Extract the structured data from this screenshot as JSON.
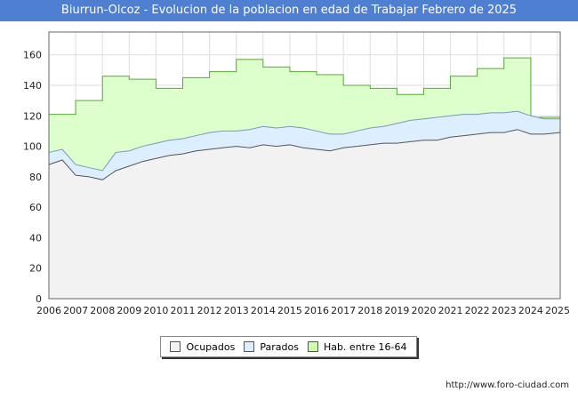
{
  "title": "Biurrun-Olcoz - Evolucion de la poblacion en edad de Trabajar Febrero de 2025",
  "footer": "http://www.foro-ciudad.com",
  "colors": {
    "ocupados_fill": "#f2f2f2",
    "ocupados_line": "#555555",
    "parados_fill": "#ddeeff",
    "parados_line": "#7799bb",
    "hab_fill": "#ddffcc",
    "hab_line": "#55aa33"
  },
  "legend": [
    {
      "label": "Ocupados",
      "color": "#f2f2f2"
    },
    {
      "label": "Parados",
      "color": "#ddeeff"
    },
    {
      "label": "Hab. entre 16-64",
      "color": "#ccffaa"
    }
  ],
  "chart_data": {
    "type": "area",
    "title": "Biurrun-Olcoz - Evolucion de la poblacion en edad de Trabajar Febrero de 2025",
    "xlabel": "",
    "ylabel": "",
    "xlim": [
      2006,
      2025.1
    ],
    "ylim": [
      0,
      175
    ],
    "yticks": [
      0,
      20,
      40,
      60,
      80,
      100,
      120,
      140,
      160
    ],
    "xticks": [
      2006,
      2007,
      2008,
      2009,
      2010,
      2011,
      2012,
      2013,
      2014,
      2015,
      2016,
      2017,
      2018,
      2019,
      2020,
      2021,
      2022,
      2023,
      2024,
      2025
    ],
    "grid": true,
    "series": [
      {
        "name": "Hab. entre 16-64",
        "x": [
          2006,
          2007,
          2008,
          2009,
          2010,
          2011,
          2012,
          2013,
          2014,
          2015,
          2016,
          2017,
          2018,
          2019,
          2020,
          2021,
          2022,
          2023,
          2024
        ],
        "values": [
          121,
          130,
          146,
          144,
          138,
          145,
          149,
          157,
          152,
          149,
          147,
          140,
          138,
          134,
          138,
          146,
          151,
          158,
          119
        ]
      },
      {
        "name": "Ocupados + Parados",
        "x": [
          2006,
          2006.5,
          2007,
          2007.5,
          2008,
          2008.5,
          2009,
          2009.5,
          2010,
          2010.5,
          2011,
          2011.5,
          2012,
          2012.5,
          2013,
          2013.5,
          2014,
          2014.5,
          2015,
          2015.5,
          2016,
          2016.5,
          2017,
          2017.5,
          2018,
          2018.5,
          2019,
          2019.5,
          2020,
          2020.5,
          2021,
          2021.5,
          2022,
          2022.5,
          2023,
          2023.5,
          2024,
          2024.5,
          2025.1
        ],
        "values": [
          96,
          98,
          88,
          86,
          84,
          96,
          97,
          100,
          102,
          104,
          105,
          107,
          109,
          110,
          110,
          111,
          113,
          112,
          113,
          112,
          110,
          108,
          108,
          110,
          112,
          113,
          115,
          117,
          118,
          119,
          120,
          121,
          121,
          122,
          122,
          123,
          120,
          118,
          118
        ]
      },
      {
        "name": "Ocupados",
        "x": [
          2006,
          2006.5,
          2007,
          2007.5,
          2008,
          2008.5,
          2009,
          2009.5,
          2010,
          2010.5,
          2011,
          2011.5,
          2012,
          2012.5,
          2013,
          2013.5,
          2014,
          2014.5,
          2015,
          2015.5,
          2016,
          2016.5,
          2017,
          2017.5,
          2018,
          2018.5,
          2019,
          2019.5,
          2020,
          2020.5,
          2021,
          2021.5,
          2022,
          2022.5,
          2023,
          2023.5,
          2024,
          2024.5,
          2025.1
        ],
        "values": [
          88,
          91,
          81,
          80,
          78,
          84,
          87,
          90,
          92,
          94,
          95,
          97,
          98,
          99,
          100,
          99,
          101,
          100,
          101,
          99,
          98,
          97,
          99,
          100,
          101,
          102,
          102,
          103,
          104,
          104,
          106,
          107,
          108,
          109,
          109,
          111,
          108,
          108,
          109
        ]
      }
    ]
  }
}
